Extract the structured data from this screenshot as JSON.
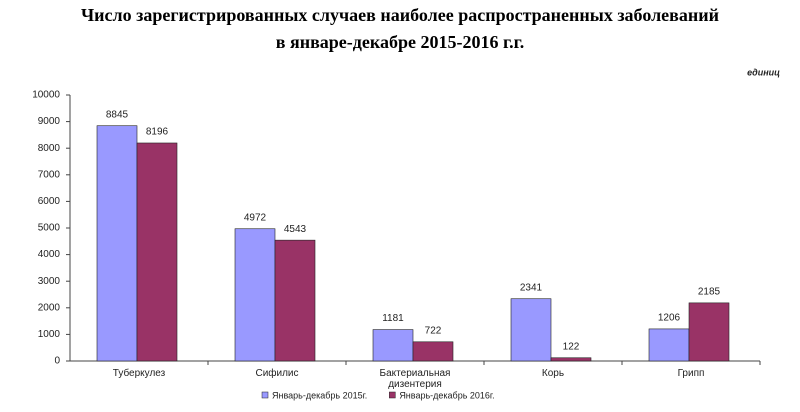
{
  "chart_data": {
    "type": "bar",
    "title": [
      "Число зарегистрированных случаев наиболее распространенных заболеваний",
      "в январе-декабре 2015-2016 г.г."
    ],
    "unit_label": "единиц",
    "categories": [
      "Туберкулез",
      "Сифилис",
      "Бактериальная дизентерия",
      "Корь",
      "Грипп"
    ],
    "series": [
      {
        "name": "Январь-декабрь 2015г.",
        "color": "#9999ff",
        "values": [
          8845,
          4972,
          1181,
          2341,
          1206
        ]
      },
      {
        "name": "Январь-декабрь 2016г.",
        "color": "#993366",
        "values": [
          8196,
          4543,
          722,
          122,
          2185
        ]
      }
    ],
    "ylim": [
      0,
      10000
    ],
    "yticks": [
      0,
      1000,
      2000,
      3000,
      4000,
      5000,
      6000,
      7000,
      8000,
      9000,
      10000
    ],
    "grid": false,
    "legend": "bottom"
  }
}
